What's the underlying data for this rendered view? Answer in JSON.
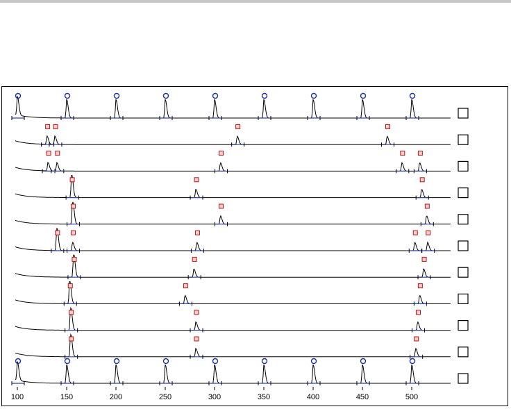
{
  "chart_data": {
    "type": "line",
    "x_ticks": [
      100,
      150,
      200,
      250,
      300,
      350,
      400,
      450,
      500
    ],
    "xlim": [
      95,
      540
    ],
    "lanes": [
      {
        "kind": "ladder",
        "peaks": [
          100,
          150,
          200,
          250,
          300,
          350,
          400,
          450,
          500
        ],
        "marker": "circle",
        "checked": false
      },
      {
        "kind": "sample",
        "peaks": [
          130,
          138,
          323,
          475
        ],
        "marker": "square",
        "checked": false
      },
      {
        "kind": "sample",
        "peaks": [
          131,
          140,
          306,
          490,
          508
        ],
        "marker": "square",
        "checked": false
      },
      {
        "kind": "sample",
        "peaks": [
          155,
          281,
          510
        ],
        "marker": "square",
        "checked": false
      },
      {
        "kind": "sample",
        "peaks": [
          156,
          306,
          515
        ],
        "marker": "square",
        "checked": false
      },
      {
        "kind": "sample",
        "peaks": [
          140,
          156,
          282,
          503,
          516
        ],
        "marker": "square",
        "checked": false
      },
      {
        "kind": "sample",
        "peaks": [
          157,
          279,
          512
        ],
        "marker": "square",
        "checked": false
      },
      {
        "kind": "sample",
        "peaks": [
          153,
          270,
          508
        ],
        "marker": "square",
        "checked": false
      },
      {
        "kind": "sample",
        "peaks": [
          154,
          281,
          506
        ],
        "marker": "square",
        "checked": false
      },
      {
        "kind": "sample",
        "peaks": [
          154,
          281,
          504
        ],
        "marker": "square",
        "checked": false
      },
      {
        "kind": "ladder",
        "peaks": [
          100,
          150,
          200,
          250,
          300,
          350,
          400,
          450,
          500
        ],
        "marker": "circle",
        "checked": false
      }
    ],
    "colors": {
      "trace": "#000000",
      "baseline": "#2a3fb8",
      "circle_marker": "#1a2fa0",
      "square_marker": "#c01010"
    }
  }
}
